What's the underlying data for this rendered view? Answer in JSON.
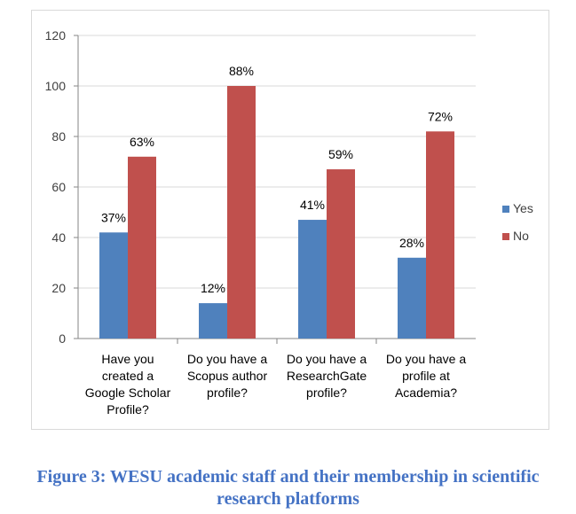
{
  "chart_data": {
    "type": "bar",
    "categories": [
      [
        "Have you",
        "created a",
        "Google Scholar",
        "Profile?"
      ],
      [
        "Do you have a",
        "Scopus author",
        "profile?"
      ],
      [
        "Do you have a",
        "ResearchGate",
        "profile?"
      ],
      [
        "Do you have a",
        "profile at",
        "Academia?"
      ]
    ],
    "series": [
      {
        "name": "Yes",
        "color": "#4f81bd",
        "values": [
          42,
          14,
          47,
          32
        ],
        "labels": [
          "37%",
          "12%",
          "41%",
          "28%"
        ]
      },
      {
        "name": "No",
        "color": "#c0504d",
        "values": [
          72,
          100,
          67,
          82
        ],
        "labels": [
          "63%",
          "88%",
          "59%",
          "72%"
        ]
      }
    ],
    "ylim": [
      0,
      120
    ],
    "yticks": [
      0,
      20,
      40,
      60,
      80,
      100,
      120
    ],
    "grid": true,
    "legend": "right"
  },
  "caption": {
    "line1": "Figure 3: WESU academic staff and their membership in scientific",
    "line2": "research platforms"
  }
}
